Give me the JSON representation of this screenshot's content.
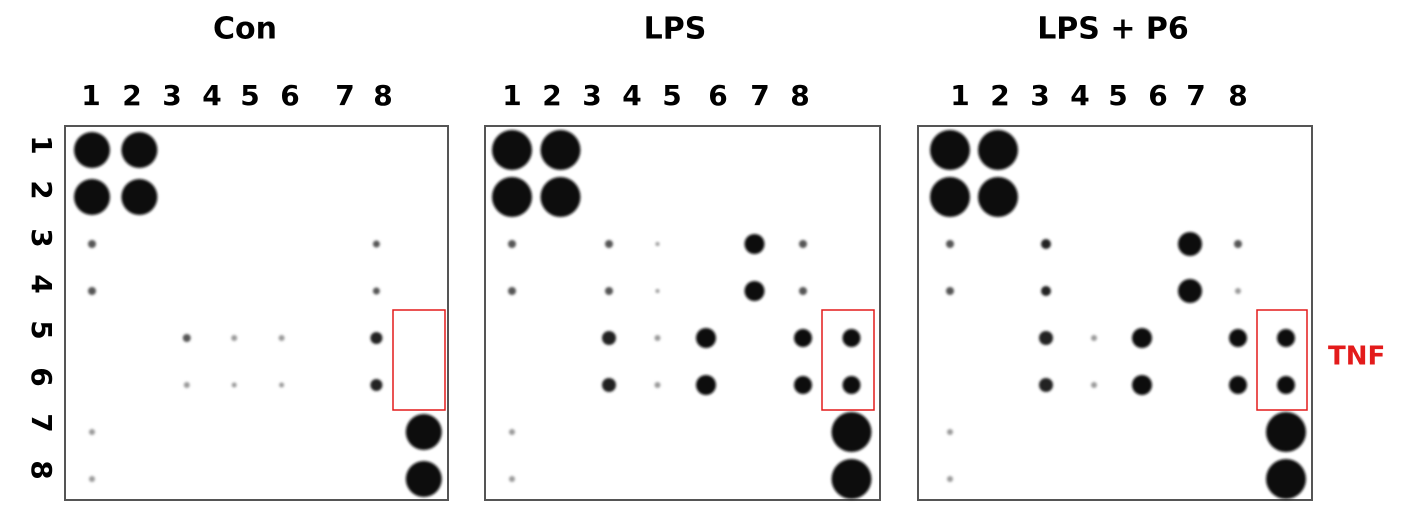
{
  "panels": [
    {
      "title": "Con",
      "columns": [
        "1",
        "2",
        "3",
        "4",
        "5",
        "6",
        "7",
        "8"
      ]
    },
    {
      "title": "LPS",
      "columns": [
        "1",
        "2",
        "3",
        "4",
        "5",
        "6",
        "7",
        "8"
      ]
    },
    {
      "title": "LPS + P6",
      "columns": [
        "1",
        "2",
        "3",
        "4",
        "5",
        "6",
        "7",
        "8"
      ]
    }
  ],
  "rows": [
    "1",
    "2",
    "3",
    "4",
    "5",
    "6",
    "7",
    "8"
  ],
  "annotation": "TNF"
}
